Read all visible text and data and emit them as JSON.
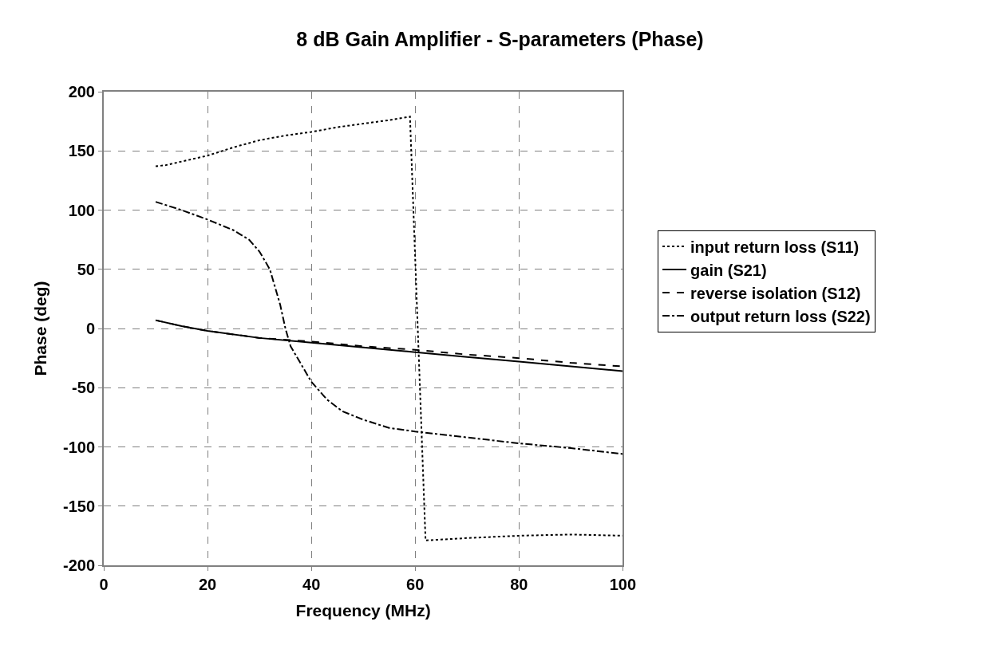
{
  "chart_data": {
    "type": "line",
    "title": "8 dB Gain Amplifier - S-parameters (Phase)",
    "xlabel": "Frequency (MHz)",
    "ylabel": "Phase (deg)",
    "xlim": [
      0,
      100
    ],
    "xticks": [
      0,
      20,
      40,
      60,
      80,
      100
    ],
    "ylim": [
      -200,
      200
    ],
    "yticks": [
      -200,
      -150,
      -100,
      -50,
      0,
      50,
      100,
      150,
      200
    ],
    "grid": true,
    "legend": "right",
    "marker": "none",
    "series": [
      {
        "name": "input return loss (S11)",
        "color": "#000000",
        "line_style": "dotted",
        "x": [
          10,
          12,
          15,
          20,
          25,
          30,
          35,
          40,
          45,
          50,
          55,
          59,
          62,
          70,
          80,
          90,
          100
        ],
        "values": [
          137,
          138,
          141,
          146,
          153,
          159,
          163,
          166,
          170,
          173,
          176,
          179,
          -179,
          -177,
          -175,
          -174,
          -175
        ]
      },
      {
        "name": "gain (S21)",
        "color": "#000000",
        "line_style": "solid",
        "x": [
          10,
          15,
          20,
          30,
          40,
          50,
          60,
          70,
          80,
          90,
          100
        ],
        "values": [
          7,
          2,
          -2,
          -8,
          -12,
          -16,
          -20,
          -24,
          -28,
          -32,
          -36
        ]
      },
      {
        "name": "reverse isolation (S12)",
        "color": "#000000",
        "line_style": "dashed",
        "x": [
          10,
          15,
          20,
          30,
          40,
          50,
          60,
          70,
          80,
          90,
          100
        ],
        "values": [
          7,
          2,
          -2,
          -8,
          -11,
          -15,
          -18,
          -22,
          -25,
          -29,
          -32
        ]
      },
      {
        "name": "output return loss (S22)",
        "color": "#000000",
        "line_style": "dashdot",
        "x": [
          10,
          15,
          20,
          25,
          28,
          30,
          32,
          34,
          35,
          36,
          38,
          40,
          43,
          46,
          50,
          55,
          60,
          70,
          80,
          90,
          100
        ],
        "values": [
          107,
          100,
          92,
          83,
          75,
          65,
          50,
          20,
          0,
          -15,
          -30,
          -45,
          -60,
          -70,
          -77,
          -84,
          -87,
          -92,
          -97,
          -101,
          -106
        ]
      }
    ]
  }
}
